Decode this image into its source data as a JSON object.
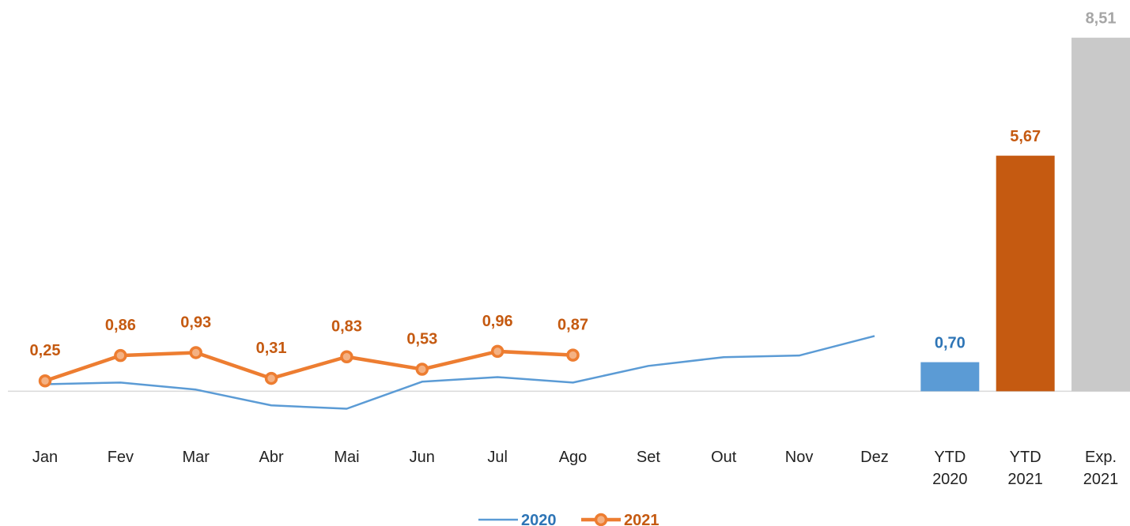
{
  "chart_data": {
    "type": "line",
    "categories": [
      "Jan",
      "Fev",
      "Mar",
      "Abr",
      "Mai",
      "Jun",
      "Jul",
      "Ago",
      "Set",
      "Out",
      "Nov",
      "Dez",
      "YTD 2020",
      "YTD 2021",
      "Exp. 2021"
    ],
    "series": [
      {
        "name": "2020",
        "color": "#5b9bd5",
        "marker": false,
        "values": [
          0.17,
          0.21,
          0.04,
          -0.34,
          -0.42,
          0.23,
          0.34,
          0.21,
          0.61,
          0.82,
          0.86,
          1.33,
          null,
          null,
          null
        ]
      },
      {
        "name": "2021",
        "color": "#ed7d31",
        "marker": true,
        "label_color": "#c55a11",
        "values": [
          0.25,
          0.86,
          0.93,
          0.31,
          0.83,
          0.53,
          0.96,
          0.87,
          null,
          null,
          null,
          null,
          null,
          null,
          null
        ],
        "value_labels": [
          "0,25",
          "0,86",
          "0,93",
          "0,31",
          "0,83",
          "0,53",
          "0,96",
          "0,87",
          null,
          null,
          null,
          null,
          null,
          null,
          null
        ]
      }
    ],
    "bars": {
      "type": "bar",
      "values": [
        null,
        null,
        null,
        null,
        null,
        null,
        null,
        null,
        null,
        null,
        null,
        null,
        0.7,
        5.67,
        8.51
      ],
      "value_labels": [
        null,
        null,
        null,
        null,
        null,
        null,
        null,
        null,
        null,
        null,
        null,
        null,
        "0,70",
        "5,67",
        "8,51"
      ],
      "colors": [
        null,
        null,
        null,
        null,
        null,
        null,
        null,
        null,
        null,
        null,
        null,
        null,
        "#5b9bd5",
        "#c55a11",
        "#c9c9c9"
      ],
      "label_colors": [
        null,
        null,
        null,
        null,
        null,
        null,
        null,
        null,
        null,
        null,
        null,
        null,
        "#2e75b6",
        "#c55a11",
        "#a6a6a6"
      ]
    },
    "ylim": [
      -1,
      8.6
    ],
    "legend": "bottom"
  }
}
